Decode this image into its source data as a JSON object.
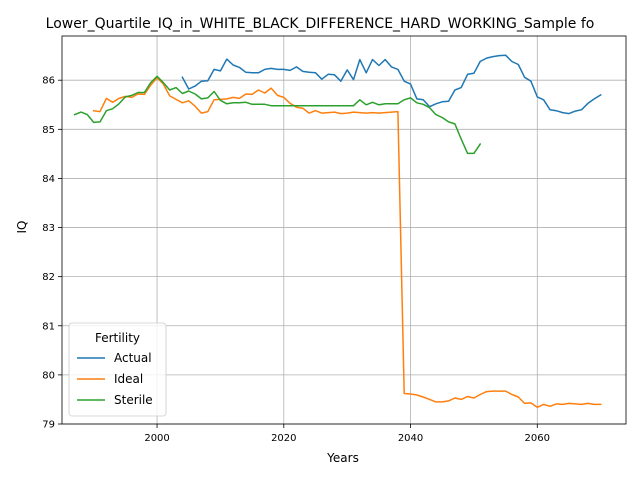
{
  "chart_data": {
    "type": "line",
    "title": "Lower_Quartile_IQ_in_WHITE_BLACK_DIFFERENCE_HARD_WORKING_Sample fo",
    "xlabel": "Years",
    "ylabel": "IQ",
    "xlim": [
      1985,
      2074
    ],
    "ylim": [
      79.0,
      86.9
    ],
    "xticks": [
      2000,
      2020,
      2040,
      2060
    ],
    "xtick_labels": [
      "2000",
      "2020",
      "2040",
      "2060"
    ],
    "yticks": [
      79,
      80,
      81,
      82,
      83,
      84,
      85,
      86
    ],
    "ytick_labels": [
      "79",
      "80",
      "81",
      "82",
      "83",
      "84",
      "85",
      "86"
    ],
    "grid": true,
    "legend": {
      "title": "Fertility",
      "placement": "lower-left"
    },
    "series": [
      {
        "name": "Actual",
        "color": "#1f77b4",
        "x": [
          2004,
          2005,
          2006,
          2007,
          2008,
          2009,
          2010,
          2011,
          2012,
          2013,
          2014,
          2015,
          2016,
          2017,
          2018,
          2019,
          2020,
          2021,
          2022,
          2023,
          2024,
          2025,
          2026,
          2027,
          2028,
          2029,
          2030,
          2031,
          2032,
          2033,
          2034,
          2035,
          2036,
          2037,
          2038,
          2039,
          2040,
          2041,
          2042,
          2043,
          2044,
          2045,
          2046,
          2047,
          2048,
          2049,
          2050,
          2051,
          2052,
          2053,
          2054,
          2055,
          2056,
          2057,
          2058,
          2059,
          2060,
          2061,
          2062,
          2063,
          2064,
          2065,
          2066,
          2067,
          2068,
          2069,
          2070
        ],
        "y": [
          86.06,
          85.82,
          85.88,
          85.98,
          85.99,
          86.22,
          86.19,
          86.43,
          86.31,
          86.26,
          86.16,
          86.15,
          86.15,
          86.22,
          86.24,
          86.22,
          86.22,
          86.2,
          86.27,
          86.18,
          86.16,
          86.15,
          86.02,
          86.12,
          86.11,
          85.98,
          86.21,
          86.01,
          86.42,
          86.15,
          86.42,
          86.3,
          86.42,
          86.27,
          86.22,
          85.98,
          85.92,
          85.62,
          85.6,
          85.46,
          85.52,
          85.56,
          85.57,
          85.8,
          85.85,
          86.12,
          86.14,
          86.38,
          86.45,
          86.48,
          86.5,
          86.51,
          86.38,
          86.32,
          86.06,
          85.98,
          85.66,
          85.6,
          85.4,
          85.38,
          85.34,
          85.32,
          85.37,
          85.4,
          85.53,
          85.62,
          85.7
        ]
      },
      {
        "name": "Ideal",
        "color": "#ff7f0e",
        "x": [
          1990,
          1991,
          1992,
          1993,
          1994,
          1995,
          1996,
          1997,
          1998,
          1999,
          2000,
          2001,
          2002,
          2003,
          2004,
          2005,
          2006,
          2007,
          2008,
          2009,
          2010,
          2011,
          2012,
          2013,
          2014,
          2015,
          2016,
          2017,
          2018,
          2019,
          2020,
          2021,
          2022,
          2023,
          2024,
          2025,
          2026,
          2027,
          2028,
          2029,
          2030,
          2031,
          2032,
          2033,
          2034,
          2035,
          2036,
          2037,
          2038,
          2039,
          2040,
          2041,
          2042,
          2043,
          2044,
          2045,
          2046,
          2047,
          2048,
          2049,
          2050,
          2051,
          2052,
          2053,
          2054,
          2055,
          2056,
          2057,
          2058,
          2059,
          2060,
          2061,
          2062,
          2063,
          2064,
          2065,
          2066,
          2067,
          2068,
          2069,
          2070
        ],
        "y": [
          85.38,
          85.36,
          85.63,
          85.55,
          85.63,
          85.67,
          85.65,
          85.72,
          85.71,
          85.9,
          86.05,
          85.92,
          85.68,
          85.61,
          85.54,
          85.58,
          85.47,
          85.33,
          85.36,
          85.6,
          85.61,
          85.62,
          85.65,
          85.63,
          85.72,
          85.71,
          85.8,
          85.74,
          85.84,
          85.69,
          85.65,
          85.53,
          85.45,
          85.43,
          85.33,
          85.38,
          85.33,
          85.34,
          85.35,
          85.32,
          85.33,
          85.35,
          85.34,
          85.33,
          85.34,
          85.33,
          85.34,
          85.35,
          85.36,
          79.62,
          79.61,
          79.59,
          79.55,
          79.5,
          79.45,
          79.45,
          79.47,
          79.53,
          79.5,
          79.56,
          79.53,
          79.6,
          79.66,
          79.67,
          79.67,
          79.67,
          79.6,
          79.55,
          79.42,
          79.43,
          79.34,
          79.4,
          79.36,
          79.41,
          79.4,
          79.42,
          79.41,
          79.4,
          79.42,
          79.4,
          79.4
        ]
      },
      {
        "name": "Sterile",
        "color": "#2ca02c",
        "x": [
          1987,
          1988,
          1989,
          1990,
          1991,
          1992,
          1993,
          1994,
          1995,
          1996,
          1997,
          1998,
          1999,
          2000,
          2001,
          2002,
          2003,
          2004,
          2005,
          2006,
          2007,
          2008,
          2009,
          2010,
          2011,
          2012,
          2013,
          2014,
          2015,
          2016,
          2017,
          2018,
          2019,
          2020,
          2021,
          2022,
          2023,
          2024,
          2025,
          2026,
          2027,
          2028,
          2029,
          2030,
          2031,
          2032,
          2033,
          2034,
          2035,
          2036,
          2037,
          2038,
          2039,
          2040,
          2041,
          2042,
          2043,
          2044,
          2045,
          2046,
          2047,
          2048,
          2049,
          2050,
          2051
        ],
        "y": [
          85.3,
          85.35,
          85.3,
          85.14,
          85.15,
          85.38,
          85.42,
          85.52,
          85.66,
          85.69,
          85.75,
          85.75,
          85.95,
          86.08,
          85.95,
          85.8,
          85.85,
          85.73,
          85.78,
          85.72,
          85.62,
          85.64,
          85.77,
          85.59,
          85.52,
          85.54,
          85.54,
          85.55,
          85.51,
          85.51,
          85.51,
          85.48,
          85.48,
          85.48,
          85.48,
          85.48,
          85.48,
          85.48,
          85.48,
          85.48,
          85.48,
          85.48,
          85.48,
          85.48,
          85.48,
          85.6,
          85.5,
          85.55,
          85.5,
          85.52,
          85.52,
          85.52,
          85.6,
          85.64,
          85.54,
          85.51,
          85.44,
          85.3,
          85.24,
          85.15,
          85.11,
          84.8,
          84.51,
          84.51,
          84.7
        ]
      }
    ]
  }
}
